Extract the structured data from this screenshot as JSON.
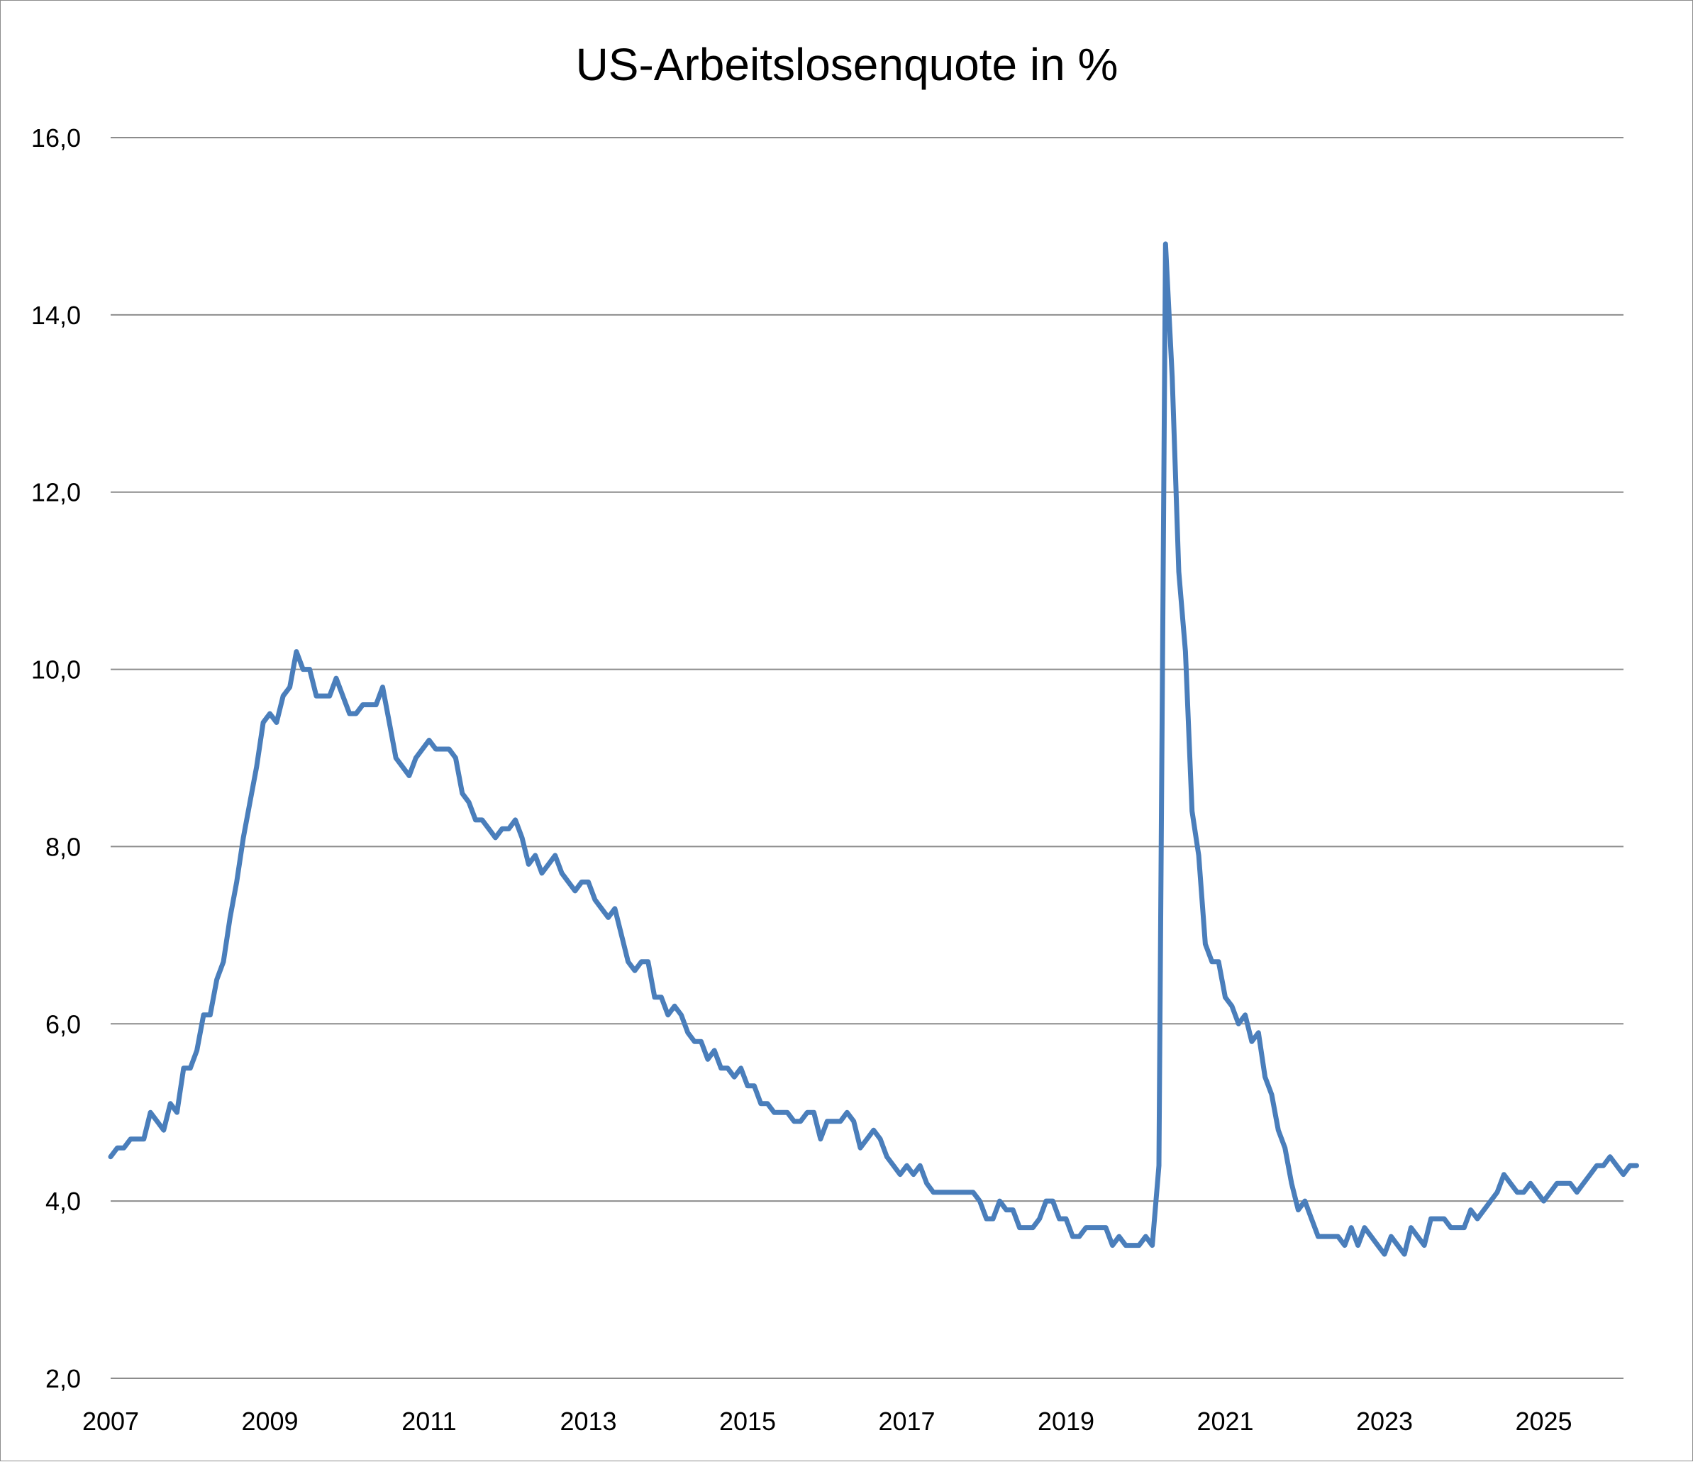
{
  "chart_data": {
    "type": "line",
    "title": "US-Arbeitslosenquote in %",
    "xlabel": "",
    "ylabel": "",
    "x_start": "2007-01",
    "x_step": "month",
    "xlim": [
      "2007-01",
      "2025-08"
    ],
    "ylim": [
      2.0,
      16.0
    ],
    "y_ticks": [
      "16,0",
      "14,0",
      "12,0",
      "10,0",
      "8,0",
      "6,0",
      "4,0",
      "2,0"
    ],
    "x_ticks": [
      "2007",
      "2009",
      "2011",
      "2013",
      "2015",
      "2017",
      "2019",
      "2021",
      "2023",
      "2025"
    ],
    "grid": true,
    "legend": "none",
    "line_color": "#4a7ebb",
    "series": [
      {
        "values": [
          4.5,
          4.6,
          4.6,
          4.7,
          4.7,
          4.7,
          5.0,
          4.9,
          4.8,
          5.1,
          5.0,
          5.5,
          5.5,
          5.7,
          6.1,
          6.1,
          6.5,
          6.7,
          7.2,
          7.6,
          8.1,
          8.5,
          8.9,
          9.4,
          9.5,
          9.4,
          9.7,
          9.8,
          10.2,
          10.0,
          10.0,
          9.7,
          9.7,
          9.7,
          9.9,
          9.7,
          9.5,
          9.5,
          9.6,
          9.6,
          9.6,
          9.8,
          9.4,
          9.0,
          8.9,
          8.8,
          9.0,
          9.1,
          9.2,
          9.1,
          9.1,
          9.1,
          9.0,
          8.6,
          8.5,
          8.3,
          8.3,
          8.2,
          8.1,
          8.2,
          8.2,
          8.3,
          8.1,
          7.8,
          7.9,
          7.7,
          7.8,
          7.9,
          7.7,
          7.6,
          7.5,
          7.6,
          7.6,
          7.4,
          7.3,
          7.2,
          7.3,
          7.0,
          6.7,
          6.6,
          6.7,
          6.7,
          6.3,
          6.3,
          6.1,
          6.2,
          6.1,
          5.9,
          5.8,
          5.8,
          5.6,
          5.7,
          5.5,
          5.5,
          5.4,
          5.5,
          5.3,
          5.3,
          5.1,
          5.1,
          5.0,
          5.0,
          5.0,
          4.9,
          4.9,
          5.0,
          5.0,
          4.7,
          4.9,
          4.9,
          4.9,
          5.0,
          4.9,
          4.6,
          4.7,
          4.8,
          4.7,
          4.5,
          4.4,
          4.3,
          4.4,
          4.3,
          4.4,
          4.2,
          4.1,
          4.1,
          4.1,
          4.1,
          4.1,
          4.1,
          4.1,
          4.0,
          3.8,
          3.8,
          4.0,
          3.9,
          3.9,
          3.7,
          3.7,
          3.7,
          3.8,
          4.0,
          4.0,
          3.8,
          3.8,
          3.6,
          3.6,
          3.7,
          3.7,
          3.7,
          3.7,
          3.5,
          3.6,
          3.5,
          3.5,
          3.5,
          3.6,
          3.5,
          4.4,
          14.8,
          13.3,
          11.1,
          10.2,
          8.4,
          7.9,
          6.9,
          6.7,
          6.7,
          6.3,
          6.2,
          6.0,
          6.1,
          5.8,
          5.9,
          5.4,
          5.2,
          4.8,
          4.6,
          4.2,
          3.9,
          4.0,
          3.8,
          3.6,
          3.6,
          3.6,
          3.6,
          3.5,
          3.7,
          3.5,
          3.7,
          3.6,
          3.5,
          3.4,
          3.6,
          3.5,
          3.4,
          3.7,
          3.6,
          3.5,
          3.8,
          3.8,
          3.8,
          3.7,
          3.7,
          3.7,
          3.9,
          3.8,
          3.9,
          4.0,
          4.1,
          4.3,
          4.2,
          4.1,
          4.1,
          4.2,
          4.1,
          4.0,
          4.1,
          4.2,
          4.2,
          4.2,
          4.1,
          4.2,
          4.3,
          4.4,
          4.4,
          4.5,
          4.4,
          4.3,
          4.4,
          4.4
        ]
      }
    ]
  }
}
